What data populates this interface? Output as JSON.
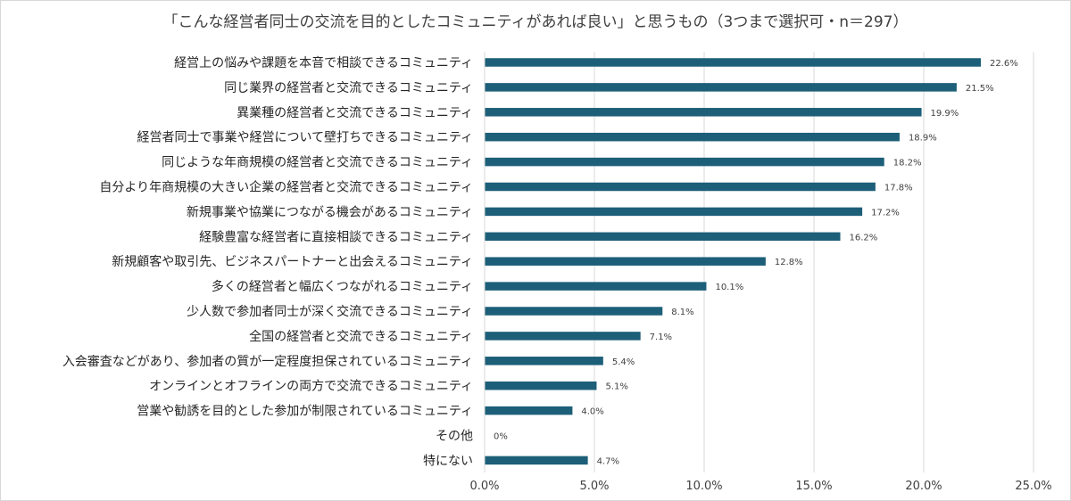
{
  "chart_data": {
    "type": "bar",
    "orientation": "horizontal",
    "title": "「こんな経営者同士の交流を目的としたコミュニティがあれば良い」と思うもの（3つまで選択可・n＝297）",
    "categories": [
      "経営上の悩みや課題を本音で相談できるコミュニティ",
      "同じ業界の経営者と交流できるコミュニティ",
      "異業種の経営者と交流できるコミュニティ",
      "経営者同士で事業や経営について壁打ちできるコミュニティ",
      "同じような年商規模の経営者と交流できるコミュニティ",
      "自分より年商規模の大きい企業の経営者と交流できるコミュニティ",
      "新規事業や協業につながる機会があるコミュニティ",
      "経験豊富な経営者に直接相談できるコミュニティ",
      "新規顧客や取引先、ビジネスパートナーと出会えるコミュニティ",
      "多くの経営者と幅広くつながれるコミュニティ",
      "少人数で参加者同士が深く交流できるコミュニティ",
      "全国の経営者と交流できるコミュニティ",
      "入会審査などがあり、参加者の質が一定程度担保されているコミュニティ",
      "オンラインとオフラインの両方で交流できるコミュニティ",
      "営業や勧誘を目的とした参加が制限されているコミュニティ",
      "その他",
      "特にない"
    ],
    "values": [
      22.6,
      21.5,
      19.9,
      18.9,
      18.2,
      17.8,
      17.2,
      16.2,
      12.8,
      10.1,
      8.1,
      7.1,
      5.4,
      5.1,
      4.0,
      0,
      4.7
    ],
    "value_labels": [
      "22.6%",
      "21.5%",
      "19.9%",
      "18.9%",
      "18.2%",
      "17.8%",
      "17.2%",
      "16.2%",
      "12.8%",
      "10.1%",
      "8.1%",
      "7.1%",
      "5.4%",
      "5.1%",
      "4.0%",
      "0%",
      "4.7%"
    ],
    "xlim": [
      0,
      25
    ],
    "xticks": [
      0,
      5,
      10,
      15,
      20,
      25
    ],
    "xtick_labels": [
      "0.0%",
      "5.0%",
      "10.0%",
      "15.0%",
      "20.0%",
      "25.0%"
    ],
    "grid": "vertical",
    "legend": "none",
    "bar_color": "#1d5f78",
    "grid_color": "#d9d9d9"
  }
}
